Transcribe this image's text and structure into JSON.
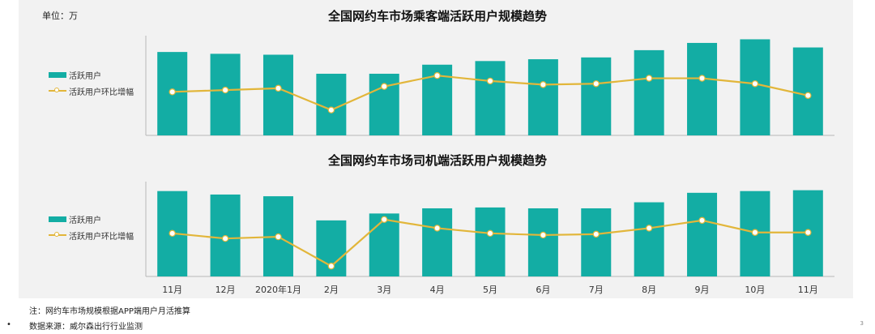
{
  "page": {
    "unit_label": "单位：万",
    "note": "注：网约车市场规模根据APP端用户月活推算",
    "source": "数据来源：威尔森出行行业监测",
    "bullet": "•",
    "page_number": "3"
  },
  "colors": {
    "bar": "#13ada4",
    "line": "#e2b63a",
    "axis": "#b8b8b8"
  },
  "chart_data": [
    {
      "type": "bar",
      "title": "全国网约车市场乘客端活跃用户规模趋势",
      "categories": [
        "11月",
        "12月",
        "2020年1月",
        "2月",
        "3月",
        "4月",
        "5月",
        "6月",
        "7月",
        "8月",
        "9月",
        "10月",
        "11月"
      ],
      "series": [
        {
          "name": "活跃用户",
          "kind": "bar",
          "values": [
            92,
            90,
            89,
            68,
            68,
            78,
            82,
            84,
            86,
            94,
            102,
            106,
            97
          ]
        },
        {
          "name": "活跃用户环比增幅",
          "kind": "line",
          "values": [
            48,
            50,
            52,
            28,
            54,
            66,
            60,
            56,
            57,
            63,
            63,
            57,
            44
          ]
        }
      ],
      "ylim": [
        0,
        110
      ],
      "grid": false,
      "legend": "left"
    },
    {
      "type": "bar",
      "title": "全国网约车市场司机端活跃用户规模趋势",
      "categories": [
        "11月",
        "12月",
        "2020年1月",
        "2月",
        "3月",
        "4月",
        "5月",
        "6月",
        "7月",
        "8月",
        "9月",
        "10月",
        "11月"
      ],
      "series": [
        {
          "name": "活跃用户",
          "kind": "bar",
          "values": [
            99,
            95,
            93,
            65,
            73,
            79,
            80,
            79,
            79,
            86,
            97,
            99,
            100
          ]
        },
        {
          "name": "活跃用户环比增幅",
          "kind": "line",
          "values": [
            50,
            44,
            46,
            12,
            66,
            56,
            50,
            48,
            49,
            56,
            65,
            51,
            51
          ]
        }
      ],
      "ylim": [
        0,
        110
      ],
      "grid": false,
      "legend": "left"
    }
  ]
}
